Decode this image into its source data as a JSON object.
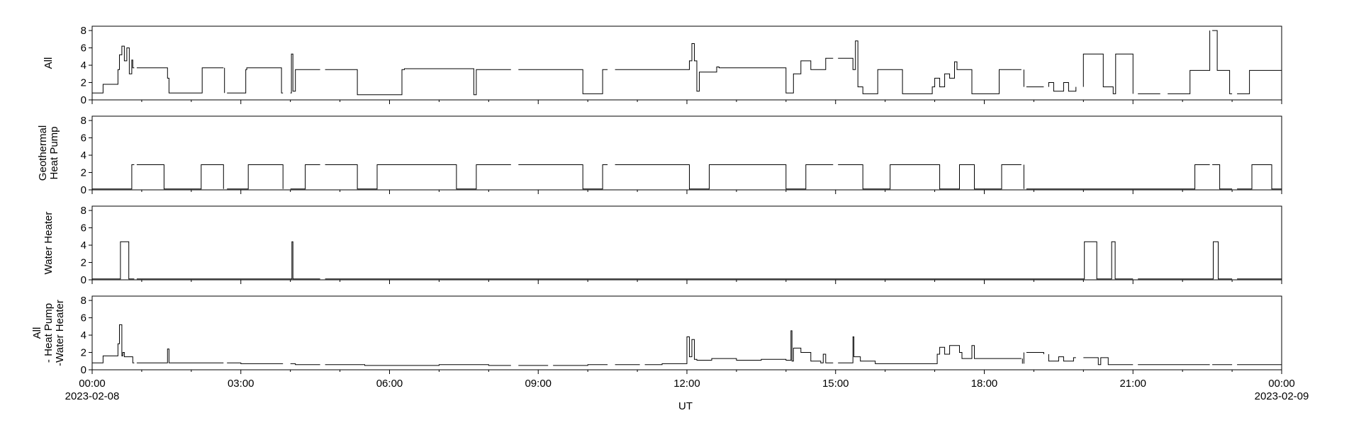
{
  "chart_data": {
    "type": "line",
    "xlabel": "UT",
    "x_ticks": [
      "00:00",
      "03:00",
      "06:00",
      "09:00",
      "12:00",
      "15:00",
      "18:00",
      "21:00",
      "00:00"
    ],
    "x_tick_hours": [
      0,
      3,
      6,
      9,
      12,
      15,
      18,
      21,
      24
    ],
    "x_dates": [
      {
        "at_hour": 0,
        "label": "2023-02-08"
      },
      {
        "at_hour": 24,
        "label": "2023-02-09"
      }
    ],
    "xlim": [
      0,
      24
    ],
    "panels": [
      {
        "ylabel_lines": [
          "All"
        ],
        "ylim": [
          0,
          8.5
        ],
        "yticks": [
          0,
          2,
          4,
          6,
          8
        ],
        "series": {
          "x": [
            0,
            0.2,
            0.22,
            0.5,
            0.52,
            0.55,
            0.6,
            0.65,
            0.7,
            0.75,
            0.8,
            0.82,
            0.85,
            0.9,
            1.45,
            1.5,
            1.52,
            1.55,
            1.7,
            2.2,
            2.22,
            2.65,
            2.67,
            3.0,
            3.05,
            3.1,
            3.12,
            3.8,
            3.82,
            4.02,
            4.05,
            4.1,
            4.15,
            5.3,
            5.35,
            5.7,
            6.25,
            6.3,
            7.3,
            7.35,
            7.7,
            7.75,
            9.85,
            9.9,
            10.25,
            10.3,
            12.0,
            12.05,
            12.1,
            12.15,
            12.2,
            12.25,
            12.6,
            12.65,
            13.95,
            14.0,
            14.1,
            14.15,
            14.3,
            14.5,
            14.8,
            15.35,
            15.4,
            15.45,
            15.55,
            15.8,
            15.85,
            16.3,
            16.35,
            16.8,
            16.95,
            17.0,
            17.1,
            17.2,
            17.3,
            17.4,
            17.45,
            17.7,
            17.75,
            18.25,
            18.3,
            18.75,
            18.8,
            19.0,
            19.3,
            19.4,
            19.6,
            19.7,
            19.85,
            20.0,
            20.3,
            20.4,
            20.6,
            20.65,
            21.0,
            21.5,
            21.7,
            22.1,
            22.15,
            22.5,
            22.55,
            22.65,
            22.7,
            22.95,
            23.3,
            23.35,
            23.7,
            24.0
          ],
          "y": [
            0.8,
            0.8,
            1.8,
            1.8,
            3.5,
            5.2,
            6.2,
            4.5,
            6.0,
            3.0,
            4.6,
            3.7,
            3.7,
            3.7,
            3.7,
            3.7,
            2.5,
            0.8,
            0.8,
            0.8,
            3.7,
            3.7,
            0.8,
            0.8,
            0.8,
            3.5,
            3.7,
            3.7,
            0.8,
            5.3,
            1.0,
            3.5,
            3.5,
            3.5,
            0.6,
            0.6,
            3.5,
            3.6,
            3.6,
            3.6,
            0.6,
            3.5,
            3.5,
            0.7,
            0.7,
            3.5,
            3.5,
            4.5,
            6.5,
            4.5,
            1.0,
            3.2,
            3.8,
            3.7,
            3.7,
            0.8,
            0.8,
            3.0,
            4.5,
            3.5,
            4.8,
            3.5,
            6.8,
            1.5,
            0.7,
            0.7,
            3.5,
            3.5,
            0.7,
            0.7,
            1.5,
            2.5,
            1.5,
            3.0,
            2.5,
            4.4,
            3.5,
            3.5,
            0.7,
            0.7,
            3.5,
            3.5,
            1.5,
            1.5,
            2.0,
            1.0,
            2.0,
            1.0,
            1.5,
            5.3,
            5.3,
            1.5,
            0.7,
            5.3,
            0.7,
            0.7,
            0.7,
            0.7,
            3.4,
            3.4,
            8.0,
            8.0,
            3.4,
            0.7,
            0.7,
            3.4,
            3.4,
            0.7
          ],
          "gaps": [
            [
              0.85,
              0.9
            ],
            [
              2.65,
              2.72
            ],
            [
              3.85,
              4.0
            ],
            [
              4.6,
              4.7
            ],
            [
              8.45,
              8.6
            ],
            [
              9.2,
              9.3
            ],
            [
              10.4,
              10.55
            ],
            [
              11.05,
              11.15
            ],
            [
              14.95,
              15.05
            ],
            [
              18.75,
              18.85
            ],
            [
              19.2,
              19.3
            ],
            [
              19.85,
              20.0
            ],
            [
              21.0,
              21.1
            ],
            [
              21.55,
              21.7
            ],
            [
              22.55,
              22.6
            ],
            [
              23.0,
              23.1
            ]
          ]
        }
      },
      {
        "ylabel_lines": [
          "Geothermal",
          "Heat Pump"
        ],
        "ylim": [
          0,
          8.5
        ],
        "yticks": [
          0,
          2,
          4,
          6,
          8
        ],
        "series": {
          "x": [
            0,
            0.75,
            0.8,
            1.4,
            1.45,
            2.15,
            2.2,
            2.6,
            2.65,
            3.1,
            3.15,
            3.8,
            3.85,
            4.15,
            4.3,
            5.3,
            5.35,
            5.7,
            5.75,
            7.3,
            7.35,
            7.7,
            7.75,
            9.85,
            9.9,
            10.25,
            10.3,
            12.0,
            12.05,
            12.4,
            12.45,
            13.95,
            14.0,
            14.35,
            14.4,
            15.5,
            15.55,
            16.05,
            16.1,
            17.05,
            17.1,
            17.45,
            17.5,
            17.75,
            17.8,
            18.3,
            18.35,
            18.75,
            18.8,
            22.2,
            22.25,
            22.7,
            22.75,
            23.35,
            23.4,
            23.75,
            23.8,
            24.0
          ],
          "y": [
            0.1,
            0.1,
            2.9,
            2.9,
            0.1,
            0.1,
            2.9,
            2.9,
            0.1,
            0.1,
            2.9,
            2.9,
            0.1,
            0.1,
            2.9,
            2.9,
            0.1,
            0.1,
            2.9,
            2.9,
            0.1,
            0.1,
            2.9,
            2.9,
            0.1,
            0.1,
            2.9,
            2.9,
            0.1,
            0.1,
            2.9,
            2.9,
            0.1,
            0.1,
            2.9,
            2.9,
            0.1,
            0.1,
            2.9,
            2.9,
            0.1,
            0.1,
            2.9,
            2.9,
            0.1,
            0.1,
            2.9,
            2.9,
            0.1,
            0.1,
            2.9,
            2.9,
            0.1,
            0.1,
            2.9,
            2.9,
            0.1,
            0.1
          ],
          "gaps": [
            [
              0.85,
              0.9
            ],
            [
              2.65,
              2.72
            ],
            [
              3.85,
              4.0
            ],
            [
              4.6,
              4.7
            ],
            [
              8.45,
              8.6
            ],
            [
              9.2,
              9.3
            ],
            [
              10.4,
              10.55
            ],
            [
              11.05,
              11.15
            ],
            [
              14.95,
              15.05
            ],
            [
              18.75,
              18.85
            ],
            [
              19.2,
              19.3
            ],
            [
              19.85,
              20.0
            ],
            [
              21.0,
              21.1
            ],
            [
              21.55,
              21.7
            ],
            [
              22.55,
              22.6
            ],
            [
              23.0,
              23.1
            ]
          ]
        }
      },
      {
        "ylabel_lines": [
          "Water Heater"
        ],
        "ylim": [
          0,
          8.5
        ],
        "yticks": [
          0,
          2,
          4,
          6,
          8
        ],
        "series": {
          "x": [
            0,
            0.55,
            0.57,
            0.72,
            0.74,
            4.02,
            4.03,
            4.05,
            20.0,
            20.02,
            20.25,
            20.27,
            20.55,
            20.57,
            20.62,
            20.64,
            22.6,
            22.62,
            22.7,
            22.72,
            24.0
          ],
          "y": [
            0.1,
            0.1,
            4.4,
            4.4,
            0.1,
            0.1,
            4.4,
            0.1,
            0.1,
            4.4,
            4.4,
            0.1,
            0.1,
            4.4,
            4.4,
            0.1,
            0.1,
            4.4,
            4.4,
            0.1,
            0.1
          ],
          "gaps": [
            [
              0.85,
              0.9
            ],
            [
              2.65,
              2.72
            ],
            [
              3.85,
              4.0
            ],
            [
              4.6,
              4.7
            ],
            [
              8.45,
              8.6
            ],
            [
              9.2,
              9.3
            ],
            [
              10.4,
              10.55
            ],
            [
              11.05,
              11.15
            ],
            [
              14.95,
              15.05
            ],
            [
              18.75,
              18.85
            ],
            [
              19.2,
              19.3
            ],
            [
              19.85,
              20.0
            ],
            [
              21.0,
              21.1
            ],
            [
              21.55,
              21.7
            ],
            [
              22.55,
              22.6
            ],
            [
              23.0,
              23.1
            ]
          ]
        }
      },
      {
        "ylabel_lines": [
          "All",
          "- Heat Pump",
          "-Water Heater"
        ],
        "ylim": [
          0,
          8.5
        ],
        "yticks": [
          0,
          2,
          4,
          6,
          8
        ],
        "series": {
          "x": [
            0,
            0.2,
            0.22,
            0.5,
            0.52,
            0.55,
            0.6,
            0.62,
            0.65,
            0.8,
            0.82,
            1.5,
            1.52,
            1.55,
            2.0,
            3.0,
            4.0,
            4.1,
            5.0,
            5.5,
            6.0,
            7.0,
            8.0,
            9.0,
            10.0,
            11.0,
            11.5,
            11.95,
            12.0,
            12.05,
            12.1,
            12.15,
            12.2,
            12.5,
            13.0,
            13.5,
            14.0,
            14.1,
            14.12,
            14.15,
            14.3,
            14.5,
            14.7,
            14.75,
            14.8,
            15.35,
            15.37,
            15.4,
            15.5,
            15.8,
            16.0,
            17.0,
            17.05,
            17.1,
            17.2,
            17.3,
            17.5,
            17.55,
            17.75,
            17.8,
            18.0,
            18.75,
            18.77,
            18.8,
            19.2,
            19.3,
            19.5,
            19.6,
            19.8,
            20.3,
            20.35,
            20.45,
            20.5,
            21.0,
            22.0,
            23.0,
            24.0
          ],
          "y": [
            0.8,
            0.8,
            1.6,
            1.6,
            3.0,
            5.2,
            1.6,
            2.0,
            1.5,
            1.5,
            0.8,
            0.8,
            2.4,
            0.8,
            0.8,
            0.7,
            0.7,
            0.6,
            0.6,
            0.5,
            0.5,
            0.6,
            0.5,
            0.5,
            0.6,
            0.6,
            0.7,
            0.7,
            3.8,
            1.5,
            3.5,
            1.2,
            1.1,
            1.3,
            1.1,
            1.2,
            1.1,
            4.5,
            1.0,
            2.5,
            2.0,
            1.0,
            0.8,
            1.8,
            0.8,
            3.8,
            1.5,
            1.5,
            1.0,
            0.7,
            0.7,
            0.7,
            1.8,
            2.6,
            1.8,
            2.8,
            2.0,
            1.3,
            2.8,
            1.3,
            1.3,
            1.3,
            0.7,
            2.0,
            1.8,
            1.0,
            1.5,
            1.0,
            1.4,
            0.6,
            1.4,
            1.4,
            0.6,
            0.6,
            0.6,
            0.6,
            0.6
          ],
          "gaps": [
            [
              0.85,
              0.9
            ],
            [
              2.65,
              2.72
            ],
            [
              3.85,
              4.0
            ],
            [
              4.6,
              4.7
            ],
            [
              8.45,
              8.6
            ],
            [
              9.2,
              9.3
            ],
            [
              10.4,
              10.55
            ],
            [
              11.05,
              11.15
            ],
            [
              14.95,
              15.05
            ],
            [
              18.75,
              18.85
            ],
            [
              19.2,
              19.3
            ],
            [
              19.85,
              20.0
            ],
            [
              21.0,
              21.1
            ],
            [
              21.55,
              21.7
            ],
            [
              22.55,
              22.6
            ],
            [
              23.0,
              23.1
            ]
          ]
        }
      }
    ]
  }
}
